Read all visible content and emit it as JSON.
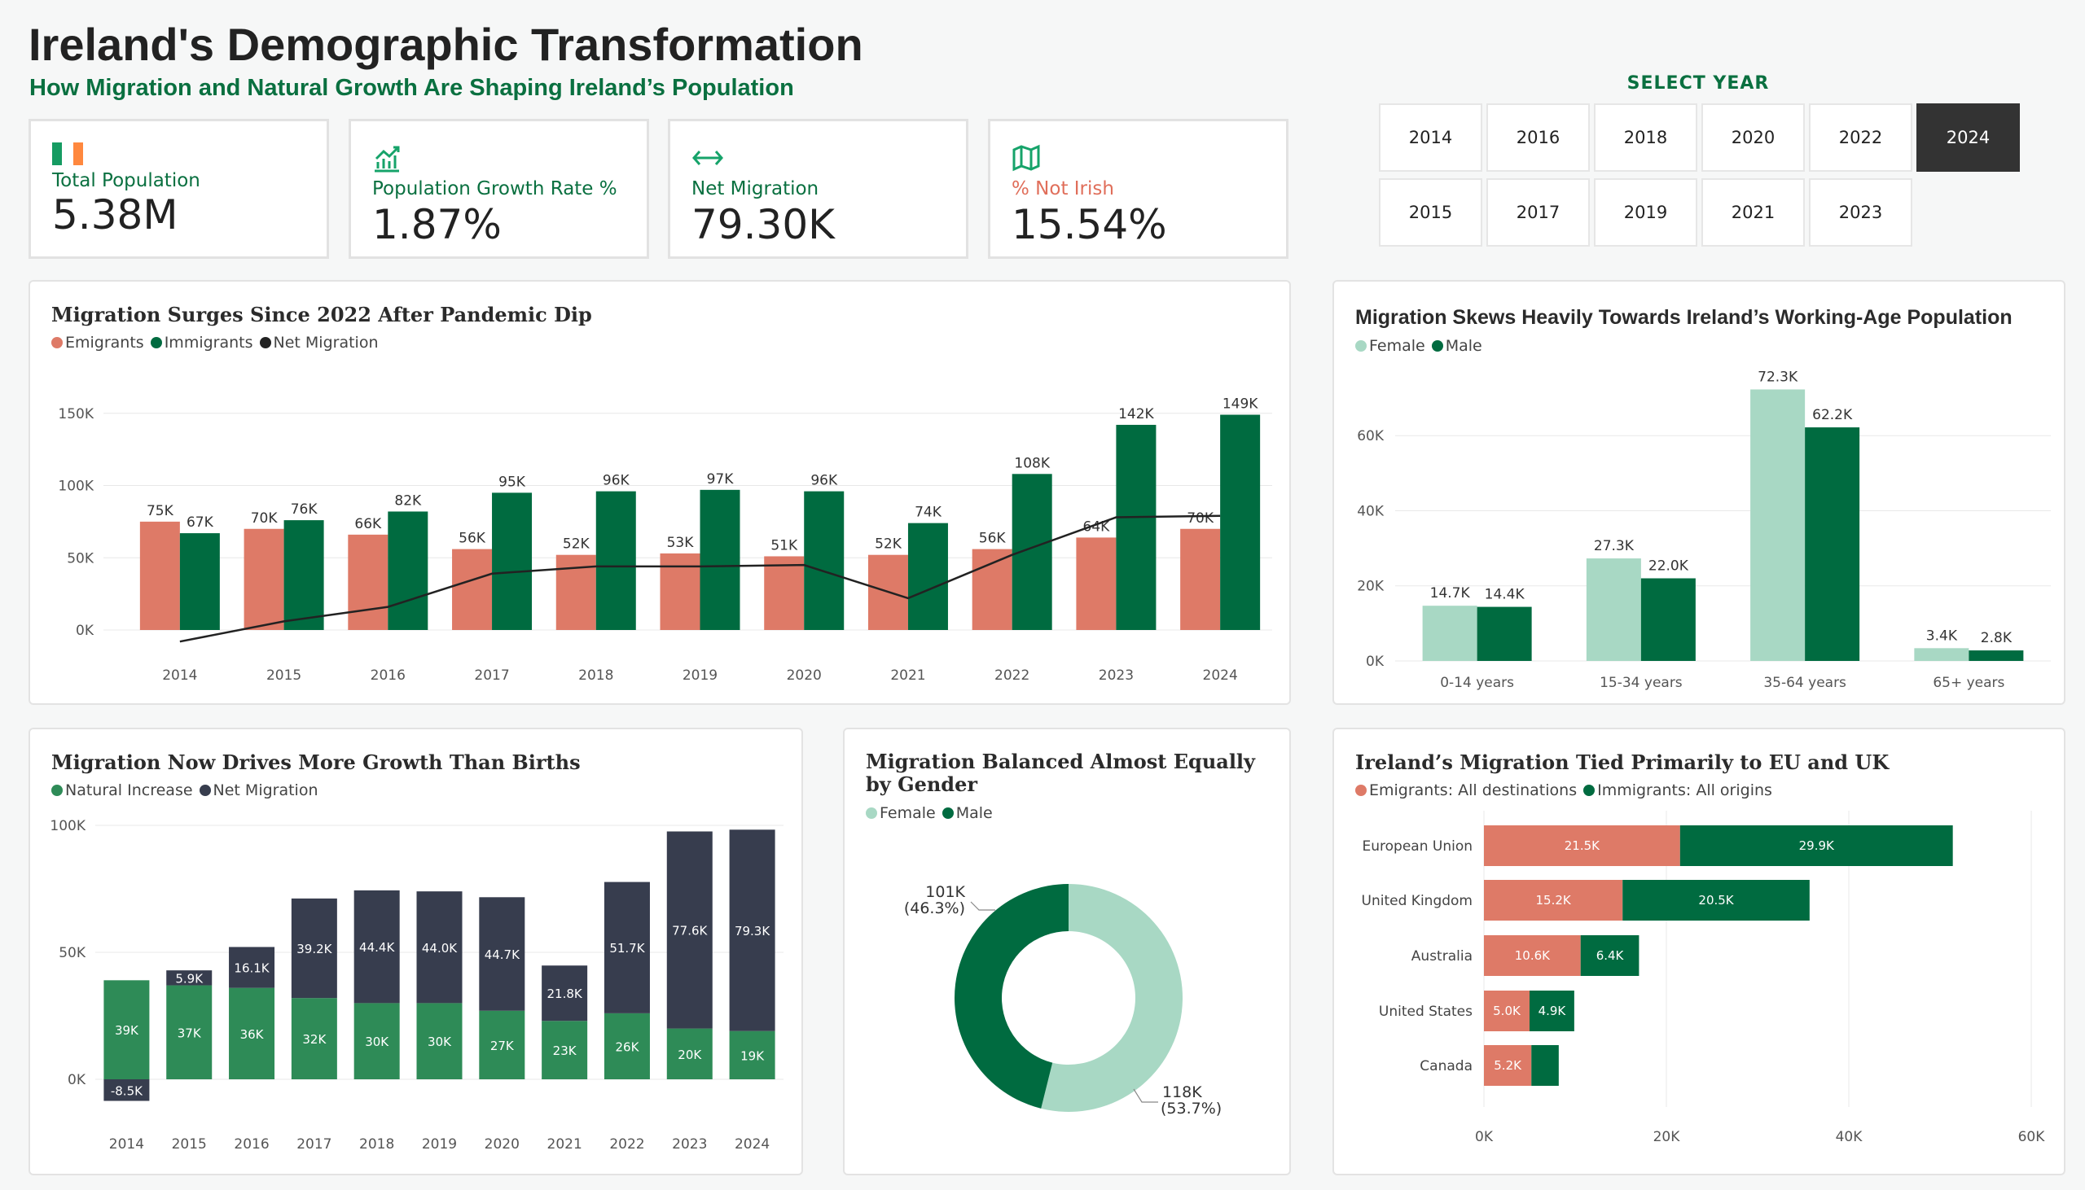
{
  "header": {
    "title": "Ireland's Demographic Transformation",
    "subtitle": "How Migration and Natural Growth Are Shaping Ireland’s Population"
  },
  "kpis": [
    {
      "label": "Total Population",
      "value": "5.38M",
      "icon": "irish-flag-icon",
      "label_color": "#0a7040"
    },
    {
      "label": "Population Growth Rate %",
      "value": "1.87%",
      "icon": "growth-chart-icon",
      "label_color": "#0a7040"
    },
    {
      "label": "Net Migration",
      "value": "79.30K",
      "icon": "left-right-arrow-icon",
      "label_color": "#0a7040"
    },
    {
      "label": "% Not Irish",
      "value": "15.54%",
      "icon": "map-icon",
      "label_color": "#e06e5a"
    }
  ],
  "year_selector": {
    "title": "SELECT YEAR",
    "years": [
      "2014",
      "2016",
      "2018",
      "2020",
      "2022",
      "2024",
      "2015",
      "2017",
      "2019",
      "2021",
      "2023"
    ],
    "selected": "2024"
  },
  "colors": {
    "emigrants": "#de7a67",
    "immigrants": "#006b40",
    "net_line": "#222222",
    "female": "#a8d8c4",
    "male": "#006b40",
    "natural": "#2e8b57",
    "net_dark": "#373d4e"
  },
  "panels": {
    "migration_surges": {
      "title": "Migration Surges Since 2022 After Pandemic Dip",
      "legend": [
        "Emigrants",
        "Immigrants",
        "Net Migration"
      ]
    },
    "working_age": {
      "title": "Migration Skews Heavily Towards Ireland’s Working-Age Population",
      "legend": [
        "Female",
        "Male"
      ]
    },
    "growth_births": {
      "title": "Migration Now Drives More Growth Than Births",
      "legend": [
        "Natural Increase",
        "Net Migration"
      ]
    },
    "gender": {
      "title": "Migration Balanced Almost Equally by Gender",
      "legend": [
        "Female",
        "Male"
      ]
    },
    "destinations": {
      "title": "Ireland’s Migration Tied Primarily to EU and UK",
      "legend": [
        "Emigrants: All destinations",
        "Immigrants: All origins"
      ]
    }
  },
  "chart_data": [
    {
      "type": "bar",
      "title": "Migration Surges Since 2022 After Pandemic Dip",
      "categories": [
        "2014",
        "2015",
        "2016",
        "2017",
        "2018",
        "2019",
        "2020",
        "2021",
        "2022",
        "2023",
        "2024"
      ],
      "series": [
        {
          "name": "Emigrants",
          "values": [
            75,
            70,
            66,
            56,
            52,
            53,
            51,
            52,
            56,
            64,
            70
          ],
          "labels": [
            "75K",
            "70K",
            "66K",
            "56K",
            "52K",
            "53K",
            "51K",
            "52K",
            "56K",
            "64K",
            "70K"
          ]
        },
        {
          "name": "Immigrants",
          "values": [
            67,
            76,
            82,
            95,
            96,
            97,
            96,
            74,
            108,
            142,
            149
          ],
          "labels": [
            "67K",
            "76K",
            "82K",
            "95K",
            "96K",
            "97K",
            "96K",
            "74K",
            "108K",
            "142K",
            "149K"
          ]
        },
        {
          "name": "Net Migration",
          "values": [
            -8,
            6,
            16,
            39,
            44,
            44,
            45,
            22,
            52,
            78,
            79
          ]
        }
      ],
      "yticks": [
        "0K",
        "50K",
        "100K",
        "150K"
      ],
      "ylim": [
        0,
        160
      ],
      "grid": true
    },
    {
      "type": "bar",
      "title": "Migration Skews Heavily Towards Ireland’s Working-Age Population",
      "categories": [
        "0-14 years",
        "15-34 years",
        "35-64 years",
        "65+ years"
      ],
      "series": [
        {
          "name": "Female",
          "values": [
            14.7,
            27.3,
            72.3,
            3.4
          ],
          "labels": [
            "14.7K",
            "27.3K",
            "72.3K",
            "3.4K"
          ]
        },
        {
          "name": "Male",
          "values": [
            14.4,
            22.0,
            62.2,
            2.8
          ],
          "labels": [
            "14.4K",
            "22.0K",
            "62.2K",
            "2.8K"
          ]
        }
      ],
      "yticks": [
        "0K",
        "20K",
        "40K",
        "60K"
      ],
      "ylim": [
        0,
        75
      ],
      "grid": true
    },
    {
      "type": "bar",
      "stacked": true,
      "title": "Migration Now Drives More Growth Than Births",
      "categories": [
        "2014",
        "2015",
        "2016",
        "2017",
        "2018",
        "2019",
        "2020",
        "2021",
        "2022",
        "2023",
        "2024"
      ],
      "series": [
        {
          "name": "Natural Increase",
          "values": [
            39,
            37,
            36,
            32,
            30,
            30,
            27,
            23,
            26,
            20,
            19
          ],
          "labels": [
            "39K",
            "37K",
            "36K",
            "32K",
            "30K",
            "30K",
            "27K",
            "23K",
            "26K",
            "20K",
            "19K"
          ]
        },
        {
          "name": "Net Migration",
          "values": [
            -8.5,
            5.9,
            16.1,
            39.2,
            44.4,
            44.0,
            44.7,
            21.8,
            51.7,
            77.6,
            79.3
          ],
          "labels": [
            "-8.5K",
            "5.9K",
            "16.1K",
            "39.2K",
            "44.4K",
            "44.0K",
            "44.7K",
            "21.8K",
            "51.7K",
            "77.6K",
            "79.3K"
          ]
        }
      ],
      "yticks": [
        "0K",
        "50K",
        "100K"
      ],
      "ylim": [
        -12,
        100
      ],
      "grid": true
    },
    {
      "type": "pie",
      "title": "Migration Balanced Almost Equally by Gender",
      "slices": [
        {
          "name": "Female",
          "value": 118,
          "label": "118K",
          "pct": "(53.7%)"
        },
        {
          "name": "Male",
          "value": 101,
          "label": "101K",
          "pct": "(46.3%)"
        }
      ]
    },
    {
      "type": "bar",
      "orientation": "horizontal",
      "stacked": true,
      "title": "Ireland’s Migration Tied Primarily to EU and UK",
      "categories": [
        "European Union",
        "United Kingdom",
        "Australia",
        "United States",
        "Canada"
      ],
      "series": [
        {
          "name": "Emigrants: All destinations",
          "values": [
            21.5,
            15.2,
            10.6,
            5.0,
            5.2
          ],
          "labels": [
            "21.5K",
            "15.2K",
            "10.6K",
            "5.0K",
            "5.2K"
          ]
        },
        {
          "name": "Immigrants: All origins",
          "values": [
            29.9,
            20.5,
            6.4,
            4.9,
            3.0
          ],
          "labels": [
            "29.9K",
            "20.5K",
            "6.4K",
            "4.9K",
            ""
          ]
        }
      ],
      "xticks": [
        "0K",
        "20K",
        "40K",
        "60K"
      ],
      "xlim": [
        0,
        60
      ],
      "grid": true
    }
  ]
}
